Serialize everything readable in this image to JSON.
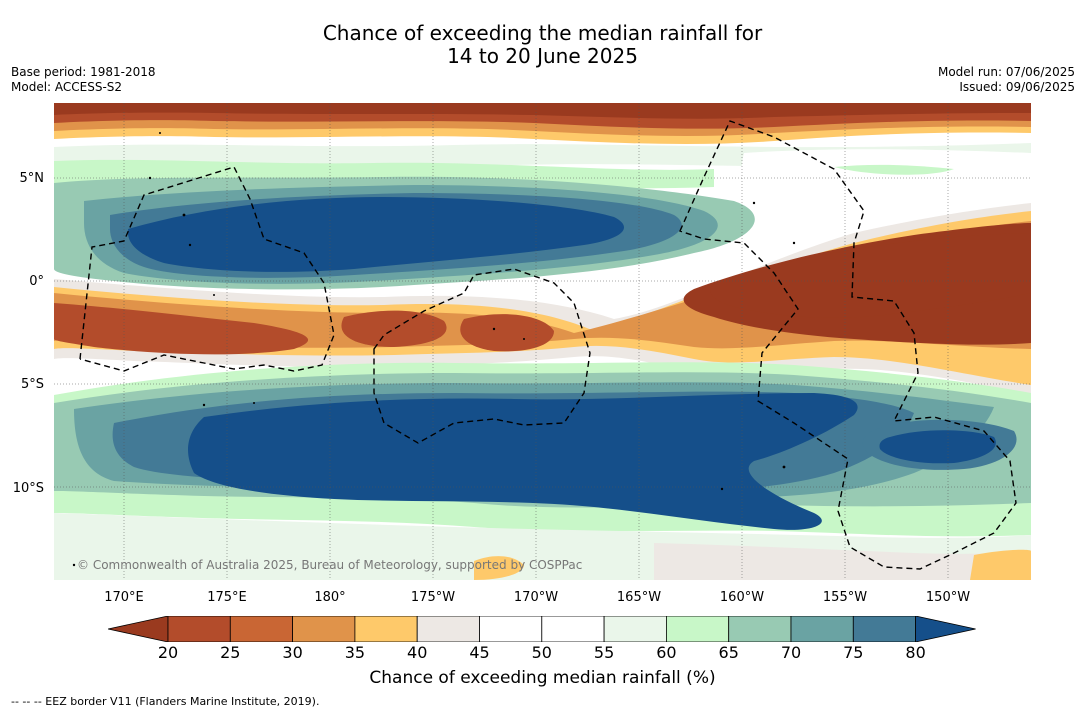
{
  "header": {
    "title_line1": "Chance of exceeding the median rainfall for",
    "title_line2": "14 to 20 June 2025",
    "base_period": "Base period: 1981-2018",
    "model": "Model: ACCESS-S2",
    "model_run": "Model run: 07/06/2025",
    "issued": "Issued: 09/06/2025"
  },
  "map": {
    "copyright": "© Commonwealth of Australia 2025, Bureau of Meteorology, supported by COSPPac",
    "lat_labels": [
      "5°N",
      "0°",
      "5°S",
      "10°S"
    ],
    "lon_labels": [
      "170°E",
      "175°E",
      "180°",
      "175°W",
      "170°W",
      "165°W",
      "160°W",
      "155°W",
      "150°W"
    ]
  },
  "legend": {
    "ticks": [
      "20",
      "25",
      "30",
      "35",
      "40",
      "45",
      "50",
      "55",
      "60",
      "65",
      "70",
      "75",
      "80"
    ],
    "colors": [
      "#9a3a1f",
      "#b34c2b",
      "#c96634",
      "#e0934a",
      "#fec96a",
      "#ede8e4",
      "#ffffff",
      "#ffffff",
      "#eaf6ea",
      "#c8f7c8",
      "#98cab3",
      "#6aa3a3",
      "#437a96",
      "#154f8a"
    ],
    "label": "Chance of exceeding median rainfall (%)"
  },
  "footnote": "-- -- -- EEZ border V11 (Flanders Marine Institute, 2019)."
}
